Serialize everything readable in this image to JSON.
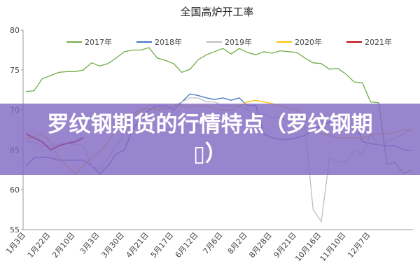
{
  "chart_data": {
    "type": "line",
    "title": "全国高炉开工率",
    "categories": [
      "1月3日",
      null,
      null,
      "1月22日",
      null,
      null,
      "2月10日",
      null,
      null,
      "3月3日",
      null,
      null,
      "3月30日",
      null,
      null,
      "4月21日",
      null,
      null,
      "5月17日",
      null,
      null,
      "6月12日",
      null,
      null,
      "7月6日",
      null,
      null,
      "8月2日",
      null,
      null,
      "8月28日",
      null,
      null,
      "9月21日",
      null,
      null,
      "10月16日",
      null,
      null,
      "11月10日",
      null,
      null,
      "12月7日",
      null,
      null,
      null,
      null,
      null
    ],
    "series": [
      {
        "name": "2017年",
        "color": "#70ad47",
        "values": [
          72.3,
          72.4,
          73.9,
          74.3,
          74.7,
          74.8,
          74.8,
          75.0,
          75.9,
          75.5,
          75.8,
          76.5,
          77.3,
          77.5,
          77.5,
          77.8,
          76.5,
          76.2,
          75.8,
          74.7,
          75.1,
          76.3,
          76.9,
          77.3,
          77.7,
          77.0,
          77.7,
          77.2,
          76.9,
          77.3,
          77.1,
          77.4,
          77.3,
          77.2,
          76.5,
          75.9,
          75.8,
          75.1,
          75.2,
          74.5,
          73.5,
          73.4,
          71.0,
          70.9,
          63.2,
          63.4,
          62.0,
          62.5
        ]
      },
      {
        "name": "2018年",
        "color": "#4472c4",
        "values": [
          63.0,
          64.0,
          64.1,
          64.0,
          63.7,
          63.7,
          63.7,
          63.7,
          63.0,
          62.0,
          63.0,
          64.5,
          65.0,
          67.5,
          69.0,
          70.0,
          70.5,
          70.5,
          70.0,
          71.0,
          72.0,
          71.8,
          71.5,
          71.3,
          71.5,
          71.2,
          71.5,
          70.5,
          70.6,
          67.0,
          66.5,
          66.3,
          66.3,
          66.5,
          66.8,
          67.5,
          68.0,
          68.5,
          69.0,
          69.5,
          69.0,
          66.0,
          65.8,
          65.6,
          65.5,
          65.5,
          65.0,
          64.9
        ]
      },
      {
        "name": "2019年",
        "color": "#bfbfbf",
        "values": [
          66.0,
          66.0,
          65.5,
          65.5,
          65.7,
          65.8,
          65.7,
          65.5,
          63.0,
          62.5,
          64.0,
          65.5,
          67.0,
          68.5,
          70.0,
          70.5,
          70.5,
          70.0,
          70.5,
          71.0,
          71.5,
          71.5,
          71.0,
          71.0,
          70.5,
          70.5,
          70.5,
          70.0,
          69.5,
          69.5,
          69.0,
          69.0,
          68.5,
          68.5,
          68.0,
          57.5,
          56.0,
          64.0,
          63.5,
          63.5,
          65.0,
          64.5,
          67.0,
          65.5,
          66.0,
          66.5,
          67.0,
          67.5
        ]
      },
      {
        "name": "2020年",
        "color": "#ffc000",
        "values": [
          66.5,
          66.5,
          67.0,
          66.0,
          64.0,
          63.0,
          62.0,
          63.0,
          64.0,
          64.8,
          66.0,
          67.5,
          69.0,
          69.5,
          70.0,
          70.2,
          70.0,
          70.3,
          70.5,
          70.5,
          70.3,
          70.5,
          70.5,
          70.2,
          70.0,
          70.0,
          70.5,
          71.0,
          71.2,
          71.0,
          70.8,
          70.5,
          70.2,
          70.0,
          69.0,
          68.0,
          67.0,
          66.8,
          66.5,
          66.5,
          66.5,
          66.5,
          66.8,
          67.0,
          67.0,
          67.2,
          67.5,
          67.5
        ]
      },
      {
        "name": "2021年",
        "color": "#c00000",
        "values": [
          67.0,
          66.5,
          66.0,
          65.0,
          65.5,
          65.8,
          66.0,
          66.5,
          null,
          null,
          null,
          null,
          null,
          null,
          null,
          null,
          null,
          null,
          null,
          null,
          null,
          null,
          null,
          null,
          null,
          null,
          null,
          null,
          null,
          null,
          null,
          null,
          null,
          null,
          null,
          null,
          null,
          null,
          null,
          null,
          null,
          null,
          null,
          null,
          null,
          null,
          null,
          null
        ]
      }
    ],
    "ylim": [
      55,
      80
    ],
    "yticks": [
      55,
      60,
      65,
      70,
      75,
      80
    ],
    "grid": false
  },
  "overlay": {
    "text": "罗纹钢期货的行情特点（罗纹钢期▯）"
  }
}
